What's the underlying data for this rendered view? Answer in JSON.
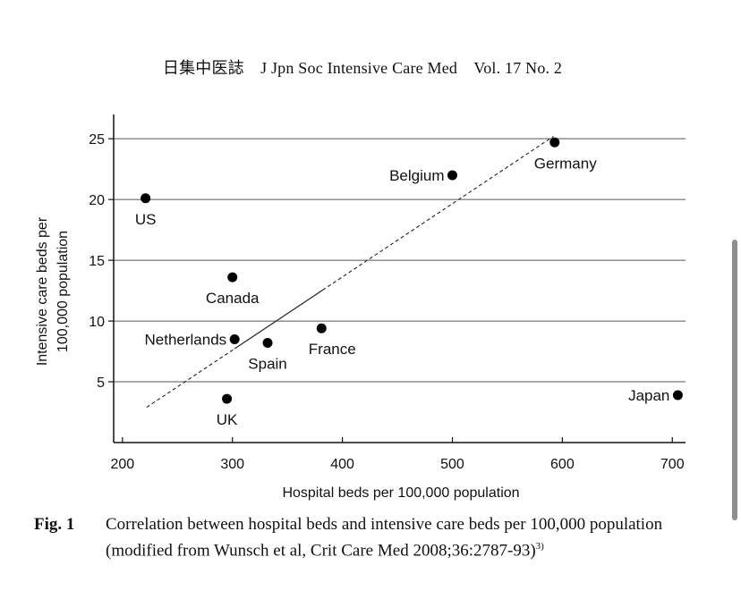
{
  "header": {
    "journal": "日集中医誌　J Jpn Soc Intensive Care Med　Vol. 17 No. 2"
  },
  "caption": {
    "label": "Fig. 1",
    "text": "Correlation between hospital beds and intensive care beds per 100,000 population (modified from Wunsch et al, Crit Care Med 2008;36:2787-93)",
    "ref": "3)"
  },
  "chart_data": {
    "type": "scatter",
    "xlabel": "Hospital beds per 100,000 population",
    "ylabel_line1": "Intensive care beds per",
    "ylabel_line2": "100,000 population",
    "xlim": [
      192,
      712
    ],
    "ylim": [
      0,
      27
    ],
    "xticks": [
      200,
      300,
      400,
      500,
      600,
      700
    ],
    "yticks": [
      5,
      10,
      15,
      20,
      25
    ],
    "grid": "horizontal",
    "points": [
      {
        "label": "US",
        "x": 221,
        "y": 20.1,
        "label_pos": "below"
      },
      {
        "label": "Canada",
        "x": 300,
        "y": 13.6,
        "label_pos": "below"
      },
      {
        "label": "Netherlands",
        "x": 302,
        "y": 8.5,
        "label_pos": "left"
      },
      {
        "label": "Spain",
        "x": 332,
        "y": 8.2,
        "label_pos": "below"
      },
      {
        "label": "France",
        "x": 381,
        "y": 9.4,
        "label_pos": "below-right"
      },
      {
        "label": "UK",
        "x": 295,
        "y": 3.6,
        "label_pos": "below"
      },
      {
        "label": "Belgium",
        "x": 500,
        "y": 22.0,
        "label_pos": "left"
      },
      {
        "label": "Germany",
        "x": 593,
        "y": 24.7,
        "label_pos": "below-right"
      },
      {
        "label": "Japan",
        "x": 705,
        "y": 3.9,
        "label_pos": "left"
      }
    ],
    "trendline": {
      "start": {
        "x": 222,
        "y": 2.9
      },
      "end": {
        "x": 592,
        "y": 25.2
      },
      "solid_range": [
        302,
        382
      ],
      "style": "dashed"
    }
  }
}
